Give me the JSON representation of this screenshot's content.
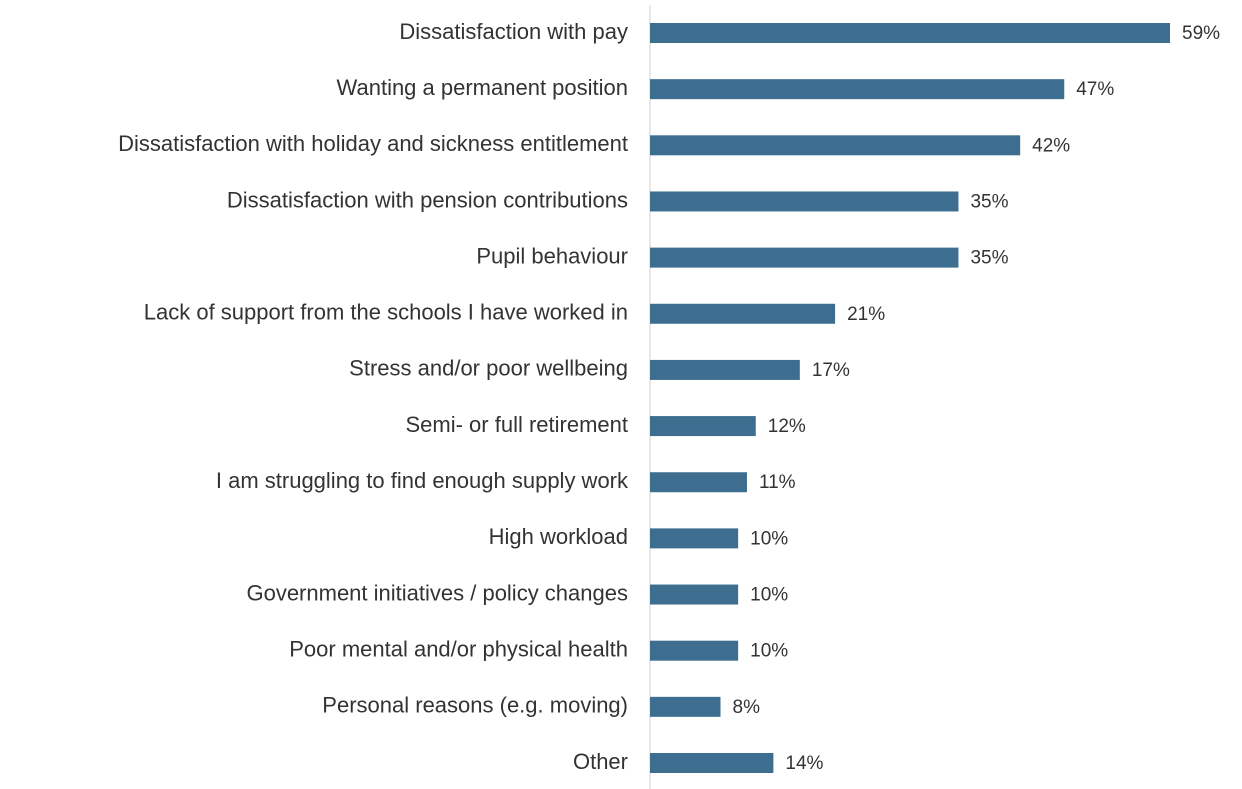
{
  "chart_data": {
    "type": "bar",
    "orientation": "horizontal",
    "color": "#3d6e8f",
    "categories": [
      "Dissatisfaction with pay",
      "Wanting a permanent position",
      "Dissatisfaction with holiday and sickness entitlement",
      "Dissatisfaction with pension contributions",
      "Pupil behaviour",
      "Lack of support from the schools I have worked in",
      "Stress and/or poor wellbeing",
      "Semi- or full retirement",
      "I am struggling to find enough supply work",
      "High workload",
      "Government initiatives / policy changes",
      "Poor mental and/or physical health",
      "Personal reasons (e.g. moving)",
      "Other"
    ],
    "values": [
      59,
      47,
      42,
      35,
      35,
      21,
      17,
      12,
      11,
      10,
      10,
      10,
      8,
      14
    ],
    "value_labels": [
      "59%",
      "47%",
      "42%",
      "35%",
      "35%",
      "21%",
      "17%",
      "12%",
      "11%",
      "10%",
      "10%",
      "10%",
      "8%",
      "14%"
    ]
  }
}
